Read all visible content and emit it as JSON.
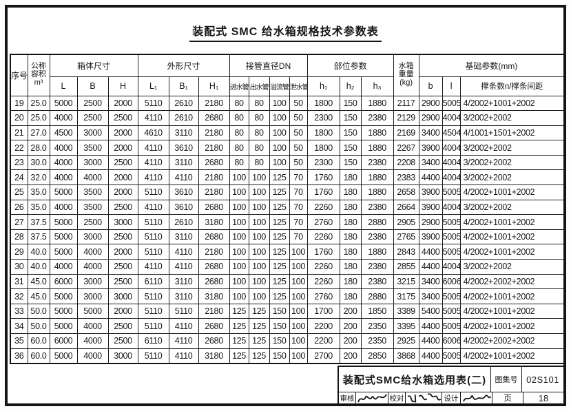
{
  "page": {
    "title": "装配式 SMC 给水箱规格技术参数表"
  },
  "table": {
    "col_xuhao": "序号",
    "col_rongji_l1": "公称",
    "col_rongji_l2": "容积",
    "col_rongji_l3": "m³",
    "group_xiangti": "箱体尺寸",
    "group_waixing": "外形尺寸",
    "group_jieguan": "接管直径DN",
    "group_buwei": "部位参数",
    "col_weight_l1": "水箱",
    "col_weight_l2": "重量",
    "col_weight_l3": "(kg)",
    "group_jichu": "基础参数(mm)",
    "sub": [
      "L",
      "B",
      "H",
      "L₁",
      "B₁",
      "H₁",
      "进水管",
      "出水管",
      "溢流管",
      "泄水管",
      "h₁",
      "h₂",
      "h₃",
      "b",
      "l",
      "撑条数n/撑条间距"
    ],
    "rows": [
      [
        "19",
        "25.0",
        "5000",
        "2500",
        "2000",
        "5110",
        "2610",
        "2180",
        "80",
        "80",
        "100",
        "50",
        "1800",
        "150",
        "1880",
        "2117",
        "2900",
        "5005",
        "4/2002+1001+2002"
      ],
      [
        "20",
        "25.0",
        "4000",
        "2500",
        "2500",
        "4110",
        "2610",
        "2680",
        "80",
        "80",
        "100",
        "50",
        "2300",
        "150",
        "2380",
        "2129",
        "2900",
        "4004",
        "3/2002+2002"
      ],
      [
        "21",
        "27.0",
        "4500",
        "3000",
        "2000",
        "4610",
        "3110",
        "2180",
        "80",
        "80",
        "100",
        "50",
        "1800",
        "150",
        "1880",
        "2169",
        "3400",
        "4504",
        "4/1001+1501+2002"
      ],
      [
        "22",
        "28.0",
        "4000",
        "3500",
        "2000",
        "4110",
        "3610",
        "2180",
        "80",
        "80",
        "100",
        "50",
        "1800",
        "150",
        "1880",
        "2267",
        "3900",
        "4004",
        "3/2002+2002"
      ],
      [
        "23",
        "30.0",
        "4000",
        "3000",
        "2500",
        "4110",
        "3110",
        "2680",
        "80",
        "80",
        "100",
        "50",
        "2300",
        "150",
        "2380",
        "2208",
        "3400",
        "4004",
        "3/2002+2002"
      ],
      [
        "24",
        "32.0",
        "4000",
        "4000",
        "2000",
        "4110",
        "4110",
        "2180",
        "100",
        "100",
        "125",
        "70",
        "1760",
        "180",
        "1880",
        "2383",
        "4400",
        "4004",
        "3/2002+2002"
      ],
      [
        "25",
        "35.0",
        "5000",
        "3500",
        "2000",
        "5110",
        "3610",
        "2180",
        "100",
        "100",
        "125",
        "70",
        "1760",
        "180",
        "1880",
        "2658",
        "3900",
        "5005",
        "4/2002+1001+2002"
      ],
      [
        "26",
        "35.0",
        "4000",
        "3500",
        "2500",
        "4110",
        "3610",
        "2680",
        "100",
        "100",
        "125",
        "70",
        "2260",
        "180",
        "2380",
        "2664",
        "3900",
        "4004",
        "3/2002+2002"
      ],
      [
        "27",
        "37.5",
        "5000",
        "2500",
        "3000",
        "5110",
        "2610",
        "3180",
        "100",
        "100",
        "125",
        "70",
        "2760",
        "180",
        "2880",
        "2905",
        "2900",
        "5005",
        "4/2002+1001+2002"
      ],
      [
        "28",
        "37.5",
        "5000",
        "3000",
        "2500",
        "5110",
        "3110",
        "2680",
        "100",
        "100",
        "125",
        "70",
        "2260",
        "180",
        "2380",
        "2765",
        "3900",
        "5005",
        "4/2002+1001+2002"
      ],
      [
        "29",
        "40.0",
        "5000",
        "4000",
        "2000",
        "5110",
        "4110",
        "2180",
        "100",
        "100",
        "125",
        "100",
        "1760",
        "180",
        "1880",
        "2843",
        "4400",
        "5005",
        "4/2002+1001+2002"
      ],
      [
        "30",
        "40.0",
        "4000",
        "4000",
        "2500",
        "4110",
        "4110",
        "2680",
        "100",
        "100",
        "125",
        "100",
        "2260",
        "180",
        "2380",
        "2855",
        "4400",
        "4004",
        "3/2002+2002"
      ],
      [
        "31",
        "45.0",
        "6000",
        "3000",
        "2500",
        "6110",
        "3110",
        "2680",
        "100",
        "100",
        "125",
        "100",
        "2260",
        "180",
        "2380",
        "3215",
        "3400",
        "6006",
        "4/2002+2002+2002"
      ],
      [
        "32",
        "45.0",
        "5000",
        "3000",
        "3000",
        "5110",
        "3110",
        "3180",
        "100",
        "100",
        "125",
        "100",
        "2760",
        "180",
        "2880",
        "3175",
        "3400",
        "5005",
        "4/2002+1001+2002"
      ],
      [
        "33",
        "50.0",
        "5000",
        "5000",
        "2000",
        "5110",
        "5110",
        "2180",
        "125",
        "125",
        "150",
        "100",
        "1700",
        "200",
        "1850",
        "3389",
        "5400",
        "5005",
        "4/2002+1001+2002"
      ],
      [
        "34",
        "50.0",
        "5000",
        "4000",
        "2500",
        "5110",
        "4110",
        "2680",
        "125",
        "125",
        "150",
        "100",
        "2200",
        "200",
        "2350",
        "3395",
        "4400",
        "5005",
        "4/2002+1001+2002"
      ],
      [
        "35",
        "60.0",
        "6000",
        "4000",
        "2500",
        "6110",
        "4110",
        "2680",
        "125",
        "125",
        "150",
        "100",
        "2200",
        "200",
        "2350",
        "2925",
        "4400",
        "6006",
        "4/2002+2002+2002"
      ],
      [
        "36",
        "60.0",
        "5000",
        "4000",
        "3000",
        "5110",
        "4110",
        "3180",
        "125",
        "125",
        "150",
        "100",
        "2700",
        "200",
        "2850",
        "3868",
        "4400",
        "5005",
        "4/2002+1001+2002"
      ]
    ]
  },
  "footer": {
    "title": "装配式SMC给水箱选用表(二)",
    "atlas_label": "图集号",
    "atlas_no": "02S101",
    "reviewer_label": "审核",
    "proofreader_label": "校对",
    "designer_label": "设计",
    "page_label": "页",
    "page_no": "18"
  }
}
